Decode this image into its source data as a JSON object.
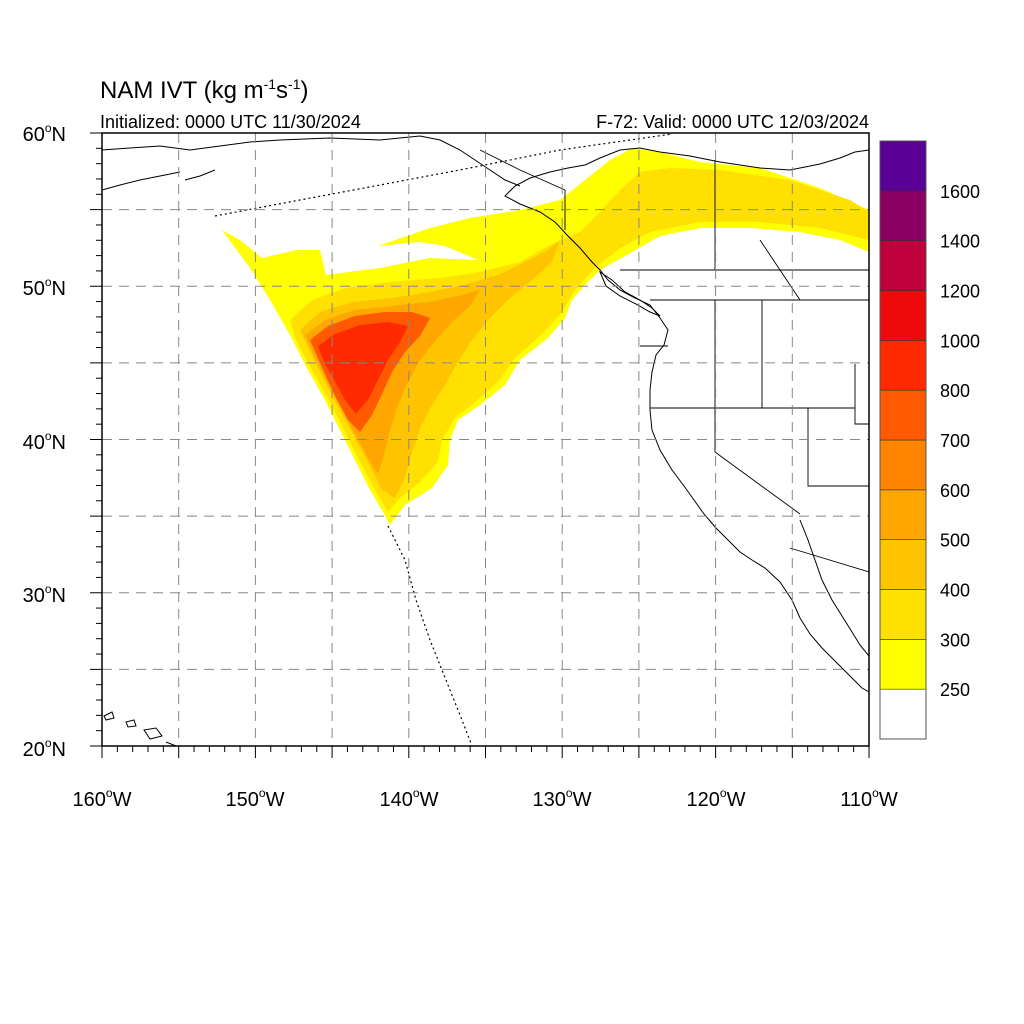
{
  "title": {
    "main": "NAM IVT (kg m",
    "unit_sup1": "-1",
    "unit_mid": "s",
    "unit_sup2": "-1",
    "unit_close": ")"
  },
  "subtitle": {
    "left": "Initialized: 0000 UTC 11/30/2024",
    "right": "F-72: Valid: 0000 UTC 12/03/2024"
  },
  "axes": {
    "lat_ticks": [
      {
        "deg": "60",
        "hemi": "N"
      },
      {
        "deg": "50",
        "hemi": "N"
      },
      {
        "deg": "40",
        "hemi": "N"
      },
      {
        "deg": "30",
        "hemi": "N"
      },
      {
        "deg": "20",
        "hemi": "N"
      }
    ],
    "lon_ticks": [
      {
        "deg": "160",
        "hemi": "W"
      },
      {
        "deg": "150",
        "hemi": "W"
      },
      {
        "deg": "140",
        "hemi": "W"
      },
      {
        "deg": "130",
        "hemi": "W"
      },
      {
        "deg": "120",
        "hemi": "W"
      },
      {
        "deg": "110",
        "hemi": "W"
      }
    ],
    "lat_range": [
      20,
      60
    ],
    "lon_range": [
      -160,
      -110
    ],
    "gridlines": "dashed, every 5 degrees"
  },
  "colorbar": {
    "labels": [
      "250",
      "300",
      "400",
      "500",
      "600",
      "700",
      "800",
      "1000",
      "1200",
      "1400",
      "1600"
    ],
    "colors": [
      "#ffffff",
      "#ffff00",
      "#ffe000",
      "#ffc400",
      "#ffa600",
      "#ff8400",
      "#ff5a00",
      "#ff2a00",
      "#ee0a0a",
      "#c0003c",
      "#8c0064",
      "#5a0096"
    ]
  },
  "map_colors": {
    "land_outline": "#000000",
    "grid": "#888888",
    "ivt_250": "#ffff00",
    "ivt_300": "#ffe000",
    "ivt_400": "#ffc400",
    "ivt_500": "#ffa600",
    "ivt_700": "#ff5a00",
    "ivt_800": "#ff2a00"
  }
}
